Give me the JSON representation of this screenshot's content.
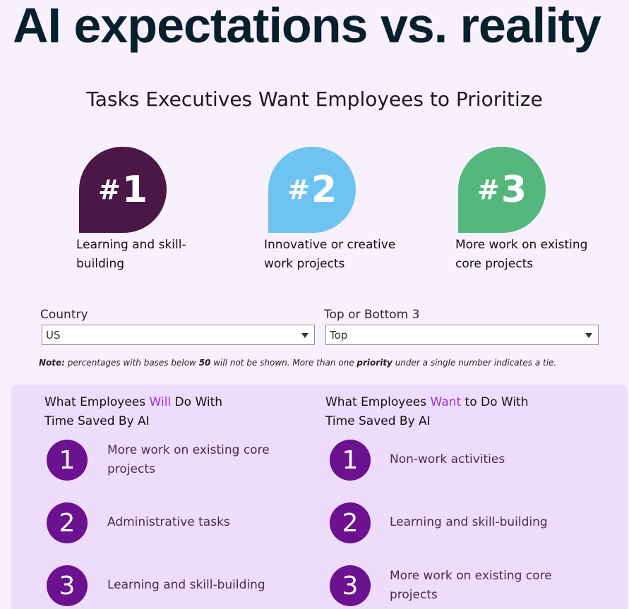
{
  "header": {
    "title": "AI expectations vs. reality",
    "subtitle": "Tasks Executives Want Employees to Prioritize"
  },
  "executive_priorities": [
    {
      "rank": "1",
      "hash": "#",
      "label": "Learning and skill-building",
      "color": "#4a1746"
    },
    {
      "rank": "2",
      "hash": "#",
      "label": "Innovative or creative work projects",
      "color": "#6ec3f1"
    },
    {
      "rank": "3",
      "hash": "#",
      "label": "More work on existing core projects",
      "color": "#55b77e"
    }
  ],
  "filters": {
    "country": {
      "label": "Country",
      "value": "US"
    },
    "top_bottom": {
      "label": "Top or Bottom 3",
      "value": "Top"
    }
  },
  "note": {
    "prefix": "Note:",
    "part1": " percentages with bases below ",
    "bold_num": "50",
    "part2": " will not be shown. More than one ",
    "bold_word": "priority",
    "part3": " under a single number indicates a tie."
  },
  "will_column": {
    "title_pre": "What Employees ",
    "title_accent": "Will",
    "title_post": " Do With Time Saved By AI",
    "items": [
      {
        "rank": "1",
        "text": "More work on existing core projects"
      },
      {
        "rank": "2",
        "text": "Administrative tasks"
      },
      {
        "rank": "3",
        "text": "Learning and skill-building"
      }
    ]
  },
  "want_column": {
    "title_pre": "What Employees ",
    "title_accent": "Want",
    "title_post": " to Do With Time Saved By AI",
    "items": [
      {
        "rank": "1",
        "text": "Non-work activities"
      },
      {
        "rank": "2",
        "text": "Learning and skill-building"
      },
      {
        "rank": "3",
        "text": "More work on existing core projects"
      }
    ]
  }
}
